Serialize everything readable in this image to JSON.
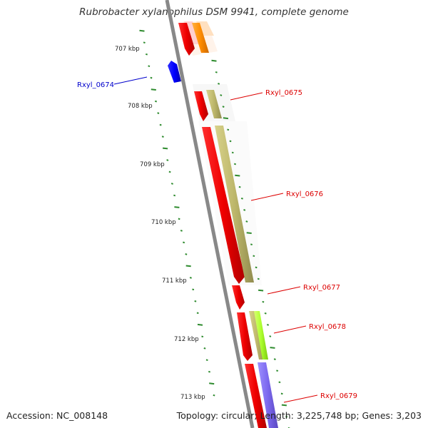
{
  "title": "Rubrobacter xylanophilus DSM 9941, complete genome",
  "footer": {
    "accession": "Accession: NC_008148",
    "stats": "Topology: circular; Length: 3,225,748 bp; Genes: 3,203"
  },
  "ticks": [
    {
      "label": "707 kbp"
    },
    {
      "label": "708 kbp"
    },
    {
      "label": "709 kbp"
    },
    {
      "label": "710 kbp"
    },
    {
      "label": "711 kbp"
    },
    {
      "label": "712 kbp"
    },
    {
      "label": "713 kbp"
    }
  ],
  "genes": [
    {
      "label": "Rxyl_0674",
      "color": "#0000cc"
    },
    {
      "label": "Rxyl_0675",
      "color": "#dd0000"
    },
    {
      "label": "Rxyl_0676",
      "color": "#dd0000"
    },
    {
      "label": "Rxyl_0677",
      "color": "#dd0000"
    },
    {
      "label": "Rxyl_0678",
      "color": "#dd0000"
    },
    {
      "label": "Rxyl_0679",
      "color": "#dd0000"
    }
  ],
  "colors": {
    "backbone": "#888888",
    "cds": "#ff0000",
    "tick": "#2e8b2e",
    "protein_khaki": "#bdb76b",
    "protein_orange": "#ff8c00",
    "protein_green": "#adff2f",
    "protein_purple": "#7b68ee",
    "reverse_gene": "#0000ff"
  }
}
